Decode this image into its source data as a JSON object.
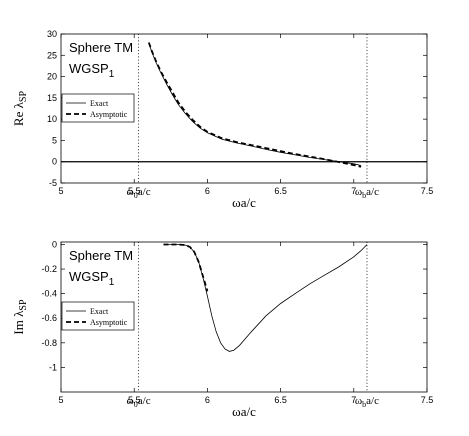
{
  "chart_data": [
    {
      "type": "line",
      "ylabel": "Re λ",
      "ylabel_sub": "SP",
      "xlabel": "ωa/c",
      "xlim": [
        5,
        7.5
      ],
      "ylim": [
        -5,
        30
      ],
      "xticks": [
        "5",
        "5.5",
        "6",
        "6.5",
        "7",
        "7.5"
      ],
      "yticks": [
        "-5",
        "0",
        "5",
        "10",
        "15",
        "20",
        "25",
        "30"
      ],
      "annotation_lines": [
        "Sphere TM",
        "WGSP",
        "1"
      ],
      "vlines": [
        {
          "x": 5.53,
          "label": "ω",
          "label_sub": "0",
          "label_tail": "a/c"
        },
        {
          "x": 7.09,
          "label": "ω",
          "label_sub": "b",
          "label_tail": "a/c"
        }
      ],
      "hline": 0,
      "legend": {
        "position": "left",
        "entries": [
          "Exact",
          "Asymptotic"
        ]
      },
      "series": [
        {
          "name": "Exact",
          "style": "solid",
          "x": [
            5.6,
            5.62,
            5.65,
            5.68,
            5.72,
            5.76,
            5.8,
            5.85,
            5.9,
            5.95,
            6.0,
            6.1,
            6.2,
            6.3,
            6.4,
            6.5,
            6.6,
            6.7,
            6.8,
            6.9,
            7.0,
            7.05
          ],
          "y": [
            27.9,
            25.8,
            23.2,
            21.0,
            18.3,
            15.8,
            13.5,
            11.3,
            9.4,
            7.9,
            6.8,
            5.3,
            4.4,
            3.7,
            2.9,
            2.2,
            1.6,
            1.0,
            0.5,
            0.0,
            -0.5,
            -0.9
          ]
        },
        {
          "name": "Asymptotic",
          "style": "dashed",
          "x": [
            5.6,
            5.62,
            5.65,
            5.68,
            5.72,
            5.76,
            5.8,
            5.85,
            5.9,
            5.95,
            6.0,
            6.1,
            6.2,
            6.3,
            6.4,
            6.5,
            6.6,
            6.7,
            6.8,
            6.9,
            7.0,
            7.05
          ],
          "y": [
            28.0,
            26.0,
            23.5,
            21.3,
            18.8,
            16.4,
            14.0,
            11.7,
            9.8,
            8.2,
            7.0,
            5.5,
            4.6,
            3.9,
            3.2,
            2.5,
            1.8,
            1.2,
            0.6,
            -0.1,
            -0.8,
            -1.2
          ]
        }
      ]
    },
    {
      "type": "line",
      "ylabel": "Im λ",
      "ylabel_sub": "SP",
      "xlabel": "ωa/c",
      "xlim": [
        5,
        7.5
      ],
      "ylim": [
        -1.2,
        0.02
      ],
      "xticks": [
        "5",
        "5.5",
        "6",
        "6.5",
        "7",
        "7.5"
      ],
      "yticks": [
        "0",
        "-0.2",
        "-0.4",
        "-0.6",
        "-0.8",
        "-1"
      ],
      "annotation_lines": [
        "Sphere TM",
        "WGSP",
        "1"
      ],
      "vlines": [
        {
          "x": 5.53,
          "label": "ω",
          "label_sub": "0",
          "label_tail": "a/c"
        },
        {
          "x": 7.09,
          "label": "ω",
          "label_sub": "b",
          "label_tail": "a/c"
        }
      ],
      "legend": {
        "position": "left",
        "entries": [
          "Exact",
          "Asymptotic"
        ]
      },
      "series": [
        {
          "name": "Exact",
          "style": "solid",
          "x": [
            5.7,
            5.8,
            5.85,
            5.88,
            5.91,
            5.94,
            5.97,
            6.0,
            6.03,
            6.06,
            6.09,
            6.12,
            6.15,
            6.18,
            6.22,
            6.3,
            6.4,
            6.5,
            6.6,
            6.7,
            6.8,
            6.9,
            7.0,
            7.05,
            7.09
          ],
          "y": [
            0.0,
            0.0,
            -0.005,
            -0.02,
            -0.06,
            -0.14,
            -0.27,
            -0.42,
            -0.58,
            -0.71,
            -0.8,
            -0.85,
            -0.87,
            -0.86,
            -0.82,
            -0.71,
            -0.58,
            -0.48,
            -0.4,
            -0.32,
            -0.25,
            -0.18,
            -0.1,
            -0.05,
            0.0
          ]
        },
        {
          "name": "Asymptotic",
          "style": "dashed",
          "x": [
            5.7,
            5.8,
            5.85,
            5.88,
            5.91,
            5.94,
            5.97,
            6.0
          ],
          "y": [
            0.0,
            0.0,
            -0.005,
            -0.02,
            -0.06,
            -0.14,
            -0.26,
            -0.38
          ]
        }
      ]
    }
  ]
}
